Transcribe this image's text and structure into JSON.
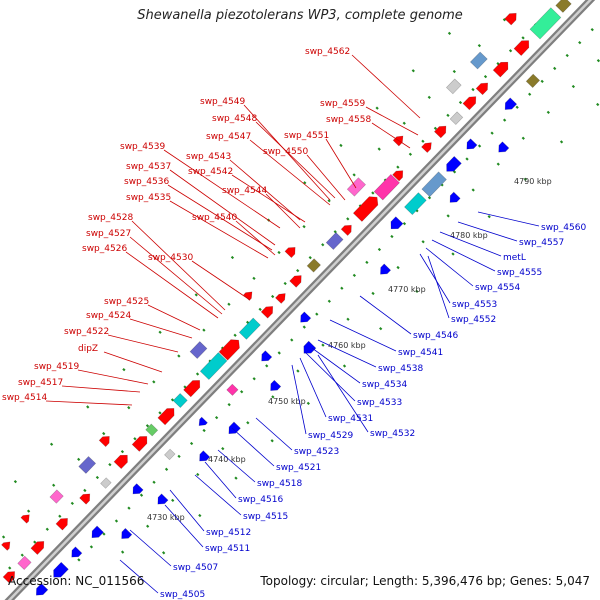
{
  "title": "Shewanella piezotolerans WP3, complete genome",
  "accession": "Accession: NC_011566",
  "summary": "Topology: circular; Length: 5,396,476 bp; Genes: 5,047",
  "colors": {
    "forward": "#ff0000",
    "reverse": "#0000ff",
    "backbone": "#9a9a9a",
    "ticks": "#228b22",
    "label_forward": "#cc0000",
    "label_reverse": "#0000cc"
  },
  "scale_labels": [
    "4730 kbp",
    "4740 kbp",
    "4750 kbp",
    "4760 kbp",
    "4770 kbp",
    "4780 kbp",
    "4790 kbp"
  ],
  "labels_forward": [
    "swp_4562",
    "swp_4559",
    "swp_4558",
    "swp_4549",
    "swp_4548",
    "swp_4551",
    "swp_4547",
    "swp_4550",
    "swp_4539",
    "swp_4543",
    "swp_4537",
    "swp_4542",
    "swp_4536",
    "swp_4544",
    "swp_4535",
    "swp_4540",
    "swp_4528",
    "swp_4527",
    "swp_4530",
    "swp_4526",
    "swp_4525",
    "swp_4524",
    "swp_4522",
    "dipZ",
    "swp_4519",
    "swp_4517",
    "swp_4514"
  ],
  "labels_reverse": [
    "swp_4560",
    "swp_4557",
    "metL",
    "swp_4555",
    "swp_4554",
    "swp_4553",
    "swp_4552",
    "swp_4546",
    "swp_4541",
    "swp_4538",
    "swp_4534",
    "swp_4533",
    "swp_4531",
    "swp_4532",
    "swp_4529",
    "swp_4523",
    "swp_4521",
    "swp_4518",
    "swp_4516",
    "swp_4515",
    "swp_4512",
    "swp_4511",
    "swp_4507",
    "swp_4505"
  ]
}
